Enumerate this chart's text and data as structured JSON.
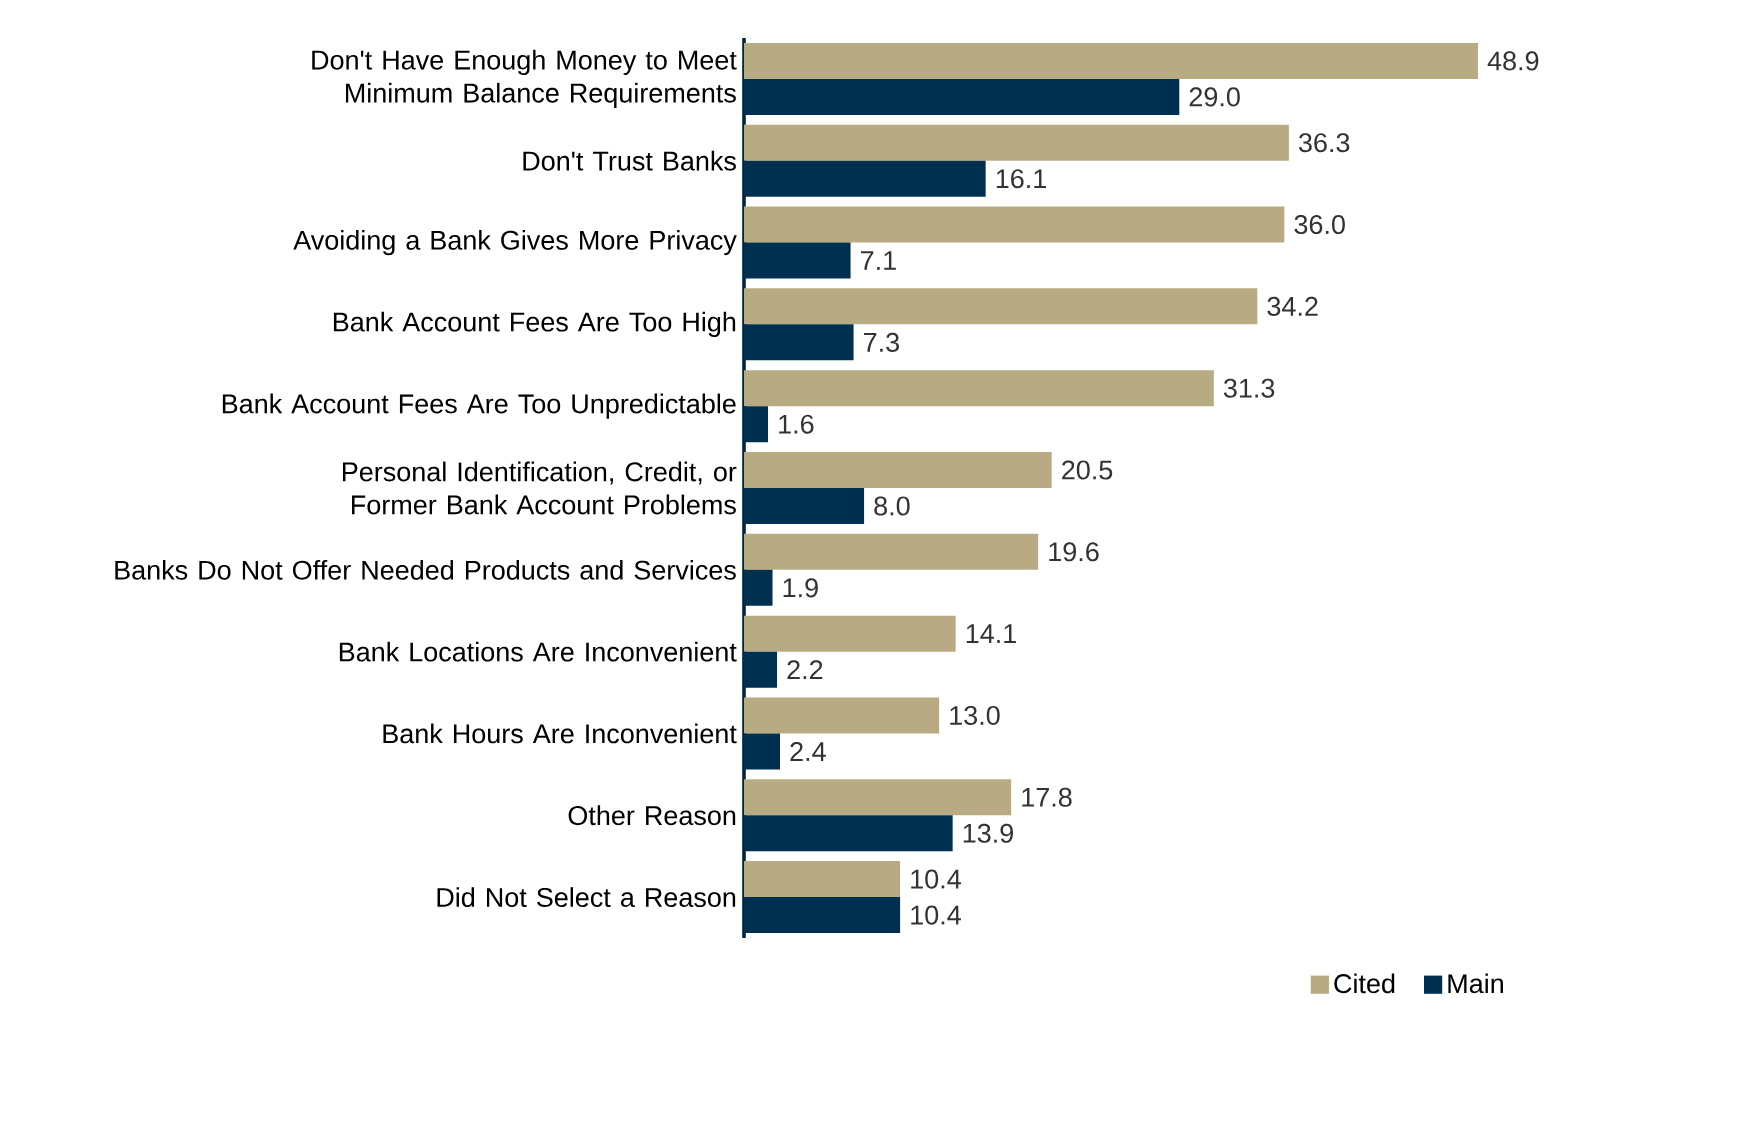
{
  "chart_data": {
    "type": "bar",
    "orientation": "horizontal",
    "legend": "bottom right",
    "categories": [
      "Don't Have Enough Money to Meet Minimum Balance Requirements",
      "Don't Trust Banks",
      "Avoiding a Bank Gives More Privacy",
      "Bank Account Fees Are Too High",
      "Bank Account Fees Are Too Unpredictable",
      "Personal Identification, Credit, or Former Bank Account Problems",
      "Banks Do Not Offer Needed Products and Services",
      "Bank Locations Are Inconvenient",
      "Bank Hours Are Inconvenient",
      "Other Reason",
      "Did Not Select a Reason"
    ],
    "series": [
      {
        "name": "Cited",
        "color": "#b8ab84",
        "values": [
          48.9,
          36.3,
          36.0,
          34.2,
          31.3,
          20.5,
          19.6,
          14.1,
          13.0,
          17.8,
          10.4
        ],
        "value_labels": [
          "48.9",
          "36.3",
          "36.0",
          "34.2",
          "31.3",
          "20.5",
          "19.6",
          "14.1",
          "13.0",
          "17.8",
          "10.4"
        ]
      },
      {
        "name": "Main",
        "color": "#00304f",
        "values": [
          29.0,
          16.1,
          7.1,
          7.3,
          1.6,
          8.0,
          1.9,
          2.2,
          2.4,
          13.9,
          10.4
        ],
        "value_labels": [
          "29.0",
          "16.1",
          "7.1",
          "7.3",
          "1.6",
          "8.0",
          "1.9",
          "2.2",
          "2.4",
          "13.9",
          "10.4"
        ]
      }
    ]
  }
}
